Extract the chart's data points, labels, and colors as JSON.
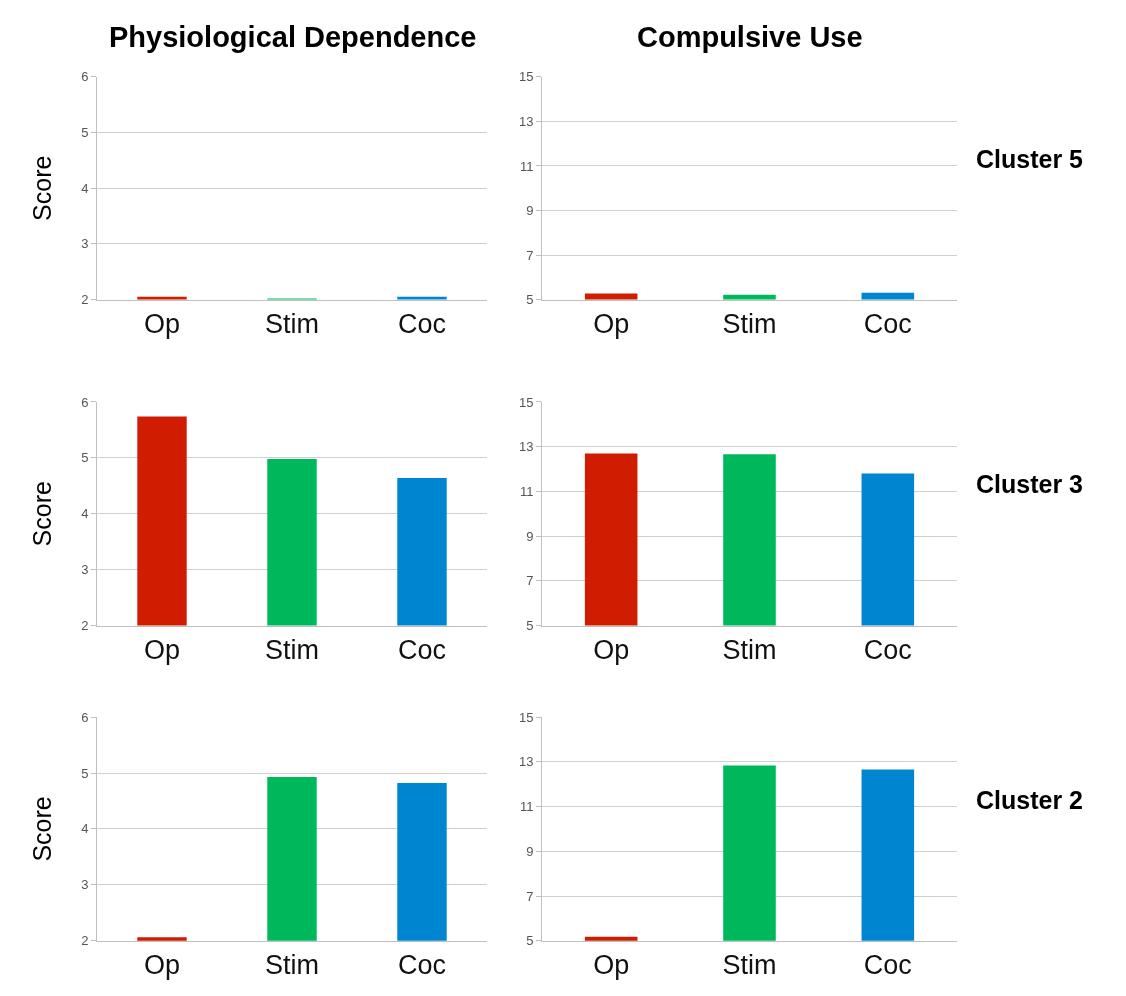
{
  "chart_data": [
    {
      "type": "bar",
      "title": "Physiological Dependence",
      "ylabel": "Score",
      "categories": [
        "Op",
        "Stim",
        "Coc"
      ],
      "values": [
        2.05,
        2.02,
        2.05
      ],
      "colors": [
        "#d01c00",
        "#00b85c",
        "#0085d0"
      ],
      "ylim": [
        2,
        6
      ],
      "yticks": [
        2,
        3,
        4,
        5,
        6
      ],
      "grid": "y"
    },
    {
      "type": "bar",
      "title": "Compulsive Use",
      "annotations": [
        "Cluster 5"
      ],
      "categories": [
        "Op",
        "Stim",
        "Coc"
      ],
      "values": [
        5.27,
        5.22,
        5.3
      ],
      "colors": [
        "#d01c00",
        "#00b85c",
        "#0085d0"
      ],
      "ylim": [
        5,
        15
      ],
      "yticks": [
        5,
        7,
        9,
        11,
        13,
        15
      ],
      "grid": "y"
    },
    {
      "type": "bar",
      "ylabel": "Score",
      "categories": [
        "Op",
        "Stim",
        "Coc"
      ],
      "values": [
        5.74,
        4.98,
        4.64
      ],
      "colors": [
        "#d01c00",
        "#00b85c",
        "#0085d0"
      ],
      "ylim": [
        2,
        6
      ],
      "yticks": [
        2,
        3,
        4,
        5,
        6
      ],
      "grid": "y"
    },
    {
      "type": "bar",
      "annotations": [
        "Cluster 3"
      ],
      "categories": [
        "Op",
        "Stim",
        "Coc"
      ],
      "values": [
        12.7,
        12.66,
        11.8
      ],
      "colors": [
        "#d01c00",
        "#00b85c",
        "#0085d0"
      ],
      "ylim": [
        5,
        15
      ],
      "yticks": [
        5,
        7,
        9,
        11,
        13,
        15
      ],
      "grid": "y"
    },
    {
      "type": "bar",
      "ylabel": "Score",
      "categories": [
        "Op",
        "Stim",
        "Coc"
      ],
      "values": [
        2.06,
        4.93,
        4.82
      ],
      "colors": [
        "#d01c00",
        "#00b85c",
        "#0085d0"
      ],
      "ylim": [
        2,
        6
      ],
      "yticks": [
        2,
        3,
        4,
        5,
        6
      ],
      "grid": "y"
    },
    {
      "type": "bar",
      "annotations": [
        "Cluster 2"
      ],
      "categories": [
        "Op",
        "Stim",
        "Coc"
      ],
      "values": [
        5.18,
        12.84,
        12.66
      ],
      "colors": [
        "#d01c00",
        "#00b85c",
        "#0085d0"
      ],
      "ylim": [
        5,
        15
      ],
      "yticks": [
        5,
        7,
        9,
        11,
        13,
        15
      ],
      "grid": "y"
    }
  ]
}
